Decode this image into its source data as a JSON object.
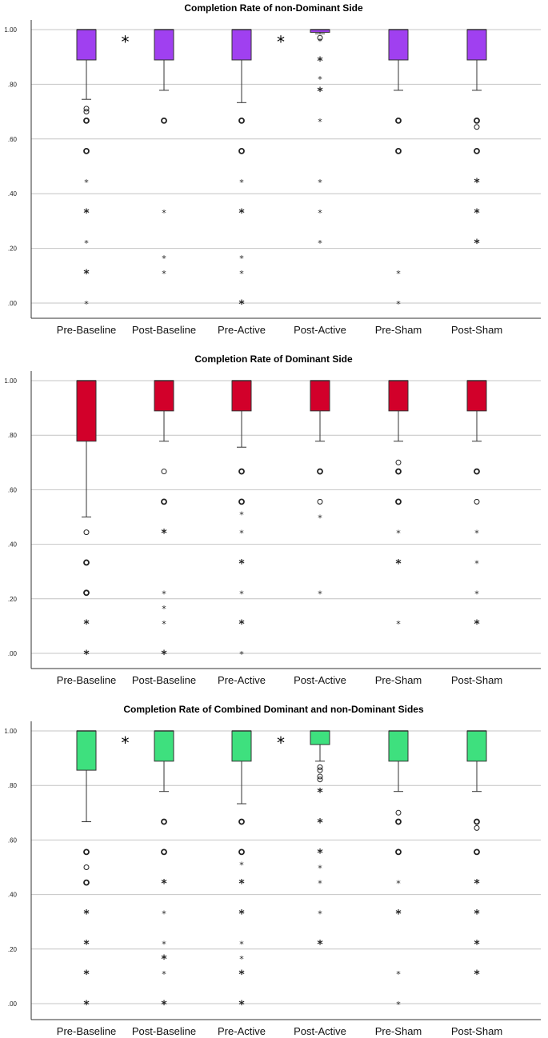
{
  "chart_data": [
    {
      "type": "box",
      "title": "Completion Rate of non-Dominant Side",
      "xlabel": "",
      "ylabel": "",
      "ylim": [
        0,
        1
      ],
      "yticks": [
        ".00",
        ".20",
        ".40",
        ".60",
        ".80",
        "1.00"
      ],
      "color": "#a040f0",
      "categories": [
        "Pre-Baseline",
        "Post-Baseline",
        "Pre-Active",
        "Post-Active",
        "Pre-Sham",
        "Post-Sham"
      ],
      "boxes": [
        {
          "q1": 0.889,
          "median": 1.0,
          "q3": 1.0,
          "whisker_low": 0.745,
          "whisker_high": 1.0
        },
        {
          "q1": 0.889,
          "median": 1.0,
          "q3": 1.0,
          "whisker_low": 0.778,
          "whisker_high": 1.0
        },
        {
          "q1": 0.889,
          "median": 1.0,
          "q3": 1.0,
          "whisker_low": 0.733,
          "whisker_high": 1.0
        },
        {
          "q1": 0.99,
          "median": 1.0,
          "q3": 1.0,
          "whisker_low": 0.985,
          "whisker_high": 1.0
        },
        {
          "q1": 0.889,
          "median": 1.0,
          "q3": 1.0,
          "whisker_low": 0.778,
          "whisker_high": 1.0
        },
        {
          "q1": 0.889,
          "median": 1.0,
          "q3": 1.0,
          "whisker_low": 0.778,
          "whisker_high": 1.0
        }
      ],
      "outliers": [
        [
          {
            "v": 0.711,
            "k": "o"
          },
          {
            "v": 0.7,
            "k": "o"
          },
          {
            "v": 0.667,
            "k": "O"
          },
          {
            "v": 0.556,
            "k": "O"
          },
          {
            "v": 0.444,
            "k": "*"
          },
          {
            "v": 0.333,
            "k": "*b"
          },
          {
            "v": 0.222,
            "k": "*"
          },
          {
            "v": 0.111,
            "k": "*b"
          },
          {
            "v": 0.0,
            "k": "*"
          }
        ],
        [
          {
            "v": 0.667,
            "k": "O"
          },
          {
            "v": 0.333,
            "k": "*"
          },
          {
            "v": 0.167,
            "k": "*"
          },
          {
            "v": 0.111,
            "k": "*"
          }
        ],
        [
          {
            "v": 0.667,
            "k": "O"
          },
          {
            "v": 0.556,
            "k": "O"
          },
          {
            "v": 0.444,
            "k": "*"
          },
          {
            "v": 0.333,
            "k": "*b"
          },
          {
            "v": 0.167,
            "k": "*"
          },
          {
            "v": 0.111,
            "k": "*"
          },
          {
            "v": 0.0,
            "k": "*b"
          }
        ],
        [
          {
            "v": 0.97,
            "k": "o"
          },
          {
            "v": 0.96,
            "k": "*"
          },
          {
            "v": 0.889,
            "k": "*b"
          },
          {
            "v": 0.822,
            "k": "*"
          },
          {
            "v": 0.778,
            "k": "*b"
          },
          {
            "v": 0.667,
            "k": "*"
          },
          {
            "v": 0.444,
            "k": "*"
          },
          {
            "v": 0.333,
            "k": "*"
          },
          {
            "v": 0.222,
            "k": "*"
          }
        ],
        [
          {
            "v": 0.667,
            "k": "O"
          },
          {
            "v": 0.556,
            "k": "O"
          },
          {
            "v": 0.111,
            "k": "*"
          },
          {
            "v": 0.0,
            "k": "*"
          }
        ],
        [
          {
            "v": 0.667,
            "k": "O"
          },
          {
            "v": 0.644,
            "k": "o"
          },
          {
            "v": 0.556,
            "k": "O"
          },
          {
            "v": 0.444,
            "k": "*b"
          },
          {
            "v": 0.333,
            "k": "*b"
          },
          {
            "v": 0.222,
            "k": "*b"
          }
        ]
      ],
      "significance_marks": [
        {
          "between": [
            0,
            1
          ],
          "value": 0.97,
          "label": "*"
        },
        {
          "between": [
            2,
            3
          ],
          "value": 0.97,
          "label": "*"
        }
      ]
    },
    {
      "type": "box",
      "title": "Completion Rate of Dominant Side",
      "xlabel": "",
      "ylabel": "",
      "ylim": [
        0,
        1
      ],
      "yticks": [
        ".00",
        ".20",
        ".40",
        ".60",
        ".80",
        "1.00"
      ],
      "color": "#d2002a",
      "categories": [
        "Pre-Baseline",
        "Post-Baseline",
        "Pre-Active",
        "Post-Active",
        "Pre-Sham",
        "Post-Sham"
      ],
      "boxes": [
        {
          "q1": 0.778,
          "median": 1.0,
          "q3": 1.0,
          "whisker_low": 0.5,
          "whisker_high": 1.0
        },
        {
          "q1": 0.889,
          "median": 1.0,
          "q3": 1.0,
          "whisker_low": 0.778,
          "whisker_high": 1.0
        },
        {
          "q1": 0.889,
          "median": 1.0,
          "q3": 1.0,
          "whisker_low": 0.756,
          "whisker_high": 1.0
        },
        {
          "q1": 0.889,
          "median": 1.0,
          "q3": 1.0,
          "whisker_low": 0.778,
          "whisker_high": 1.0
        },
        {
          "q1": 0.889,
          "median": 1.0,
          "q3": 1.0,
          "whisker_low": 0.778,
          "whisker_high": 1.0
        },
        {
          "q1": 0.889,
          "median": 1.0,
          "q3": 1.0,
          "whisker_low": 0.778,
          "whisker_high": 1.0
        }
      ],
      "outliers": [
        [
          {
            "v": 0.444,
            "k": "o"
          },
          {
            "v": 0.333,
            "k": "O"
          },
          {
            "v": 0.222,
            "k": "O"
          },
          {
            "v": 0.111,
            "k": "*b"
          },
          {
            "v": 0.0,
            "k": "*b"
          }
        ],
        [
          {
            "v": 0.667,
            "k": "o"
          },
          {
            "v": 0.556,
            "k": "O"
          },
          {
            "v": 0.444,
            "k": "*b"
          },
          {
            "v": 0.222,
            "k": "*"
          },
          {
            "v": 0.167,
            "k": "*"
          },
          {
            "v": 0.111,
            "k": "*"
          },
          {
            "v": 0.0,
            "k": "*b"
          }
        ],
        [
          {
            "v": 0.667,
            "k": "O"
          },
          {
            "v": 0.556,
            "k": "O"
          },
          {
            "v": 0.511,
            "k": "*"
          },
          {
            "v": 0.444,
            "k": "*"
          },
          {
            "v": 0.333,
            "k": "*b"
          },
          {
            "v": 0.222,
            "k": "*"
          },
          {
            "v": 0.111,
            "k": "*b"
          },
          {
            "v": 0.0,
            "k": "*"
          }
        ],
        [
          {
            "v": 0.667,
            "k": "O"
          },
          {
            "v": 0.556,
            "k": "o"
          },
          {
            "v": 0.5,
            "k": "*"
          },
          {
            "v": 0.222,
            "k": "*"
          }
        ],
        [
          {
            "v": 0.7,
            "k": "o"
          },
          {
            "v": 0.667,
            "k": "O"
          },
          {
            "v": 0.556,
            "k": "O"
          },
          {
            "v": 0.444,
            "k": "*"
          },
          {
            "v": 0.333,
            "k": "*b"
          },
          {
            "v": 0.111,
            "k": "*"
          }
        ],
        [
          {
            "v": 0.667,
            "k": "O"
          },
          {
            "v": 0.556,
            "k": "o"
          },
          {
            "v": 0.444,
            "k": "*"
          },
          {
            "v": 0.333,
            "k": "*"
          },
          {
            "v": 0.222,
            "k": "*"
          },
          {
            "v": 0.111,
            "k": "*b"
          }
        ]
      ],
      "significance_marks": []
    },
    {
      "type": "box",
      "title": "Completion Rate of Combined Dominant and non-Dominant Sides",
      "xlabel": "",
      "ylabel": "",
      "ylim": [
        0,
        1
      ],
      "yticks": [
        ".00",
        ".20",
        ".40",
        ".60",
        ".80",
        "1.00"
      ],
      "color": "#3ee07e",
      "categories": [
        "Pre-Baseline",
        "Post-Baseline",
        "Pre-Active",
        "Post-Active",
        "Pre-Sham",
        "Post-Sham"
      ],
      "boxes": [
        {
          "q1": 0.856,
          "median": 1.0,
          "q3": 1.0,
          "whisker_low": 0.667,
          "whisker_high": 1.0
        },
        {
          "q1": 0.889,
          "median": 1.0,
          "q3": 1.0,
          "whisker_low": 0.778,
          "whisker_high": 1.0
        },
        {
          "q1": 0.889,
          "median": 1.0,
          "q3": 1.0,
          "whisker_low": 0.733,
          "whisker_high": 1.0
        },
        {
          "q1": 0.95,
          "median": 1.0,
          "q3": 1.0,
          "whisker_low": 0.889,
          "whisker_high": 1.0
        },
        {
          "q1": 0.889,
          "median": 1.0,
          "q3": 1.0,
          "whisker_low": 0.778,
          "whisker_high": 1.0
        },
        {
          "q1": 0.889,
          "median": 1.0,
          "q3": 1.0,
          "whisker_low": 0.778,
          "whisker_high": 1.0
        }
      ],
      "outliers": [
        [
          {
            "v": 0.556,
            "k": "O"
          },
          {
            "v": 0.5,
            "k": "o"
          },
          {
            "v": 0.444,
            "k": "O"
          },
          {
            "v": 0.333,
            "k": "*b"
          },
          {
            "v": 0.222,
            "k": "*b"
          },
          {
            "v": 0.111,
            "k": "*b"
          },
          {
            "v": 0.0,
            "k": "*b"
          }
        ],
        [
          {
            "v": 0.667,
            "k": "O"
          },
          {
            "v": 0.556,
            "k": "O"
          },
          {
            "v": 0.444,
            "k": "*b"
          },
          {
            "v": 0.333,
            "k": "*"
          },
          {
            "v": 0.222,
            "k": "*"
          },
          {
            "v": 0.167,
            "k": "*b"
          },
          {
            "v": 0.111,
            "k": "*"
          },
          {
            "v": 0.0,
            "k": "*b"
          }
        ],
        [
          {
            "v": 0.667,
            "k": "O"
          },
          {
            "v": 0.556,
            "k": "O"
          },
          {
            "v": 0.511,
            "k": "*"
          },
          {
            "v": 0.444,
            "k": "*b"
          },
          {
            "v": 0.333,
            "k": "*b"
          },
          {
            "v": 0.222,
            "k": "*"
          },
          {
            "v": 0.167,
            "k": "*"
          },
          {
            "v": 0.111,
            "k": "*b"
          },
          {
            "v": 0.0,
            "k": "*b"
          }
        ],
        [
          {
            "v": 0.867,
            "k": "o"
          },
          {
            "v": 0.856,
            "k": "o"
          },
          {
            "v": 0.833,
            "k": "o"
          },
          {
            "v": 0.822,
            "k": "o"
          },
          {
            "v": 0.778,
            "k": "*b"
          },
          {
            "v": 0.667,
            "k": "*b"
          },
          {
            "v": 0.556,
            "k": "*b"
          },
          {
            "v": 0.5,
            "k": "*"
          },
          {
            "v": 0.444,
            "k": "*"
          },
          {
            "v": 0.333,
            "k": "*"
          },
          {
            "v": 0.222,
            "k": "*b"
          }
        ],
        [
          {
            "v": 0.7,
            "k": "o"
          },
          {
            "v": 0.667,
            "k": "O"
          },
          {
            "v": 0.556,
            "k": "O"
          },
          {
            "v": 0.444,
            "k": "*"
          },
          {
            "v": 0.333,
            "k": "*b"
          },
          {
            "v": 0.111,
            "k": "*"
          },
          {
            "v": 0.0,
            "k": "*"
          }
        ],
        [
          {
            "v": 0.667,
            "k": "O"
          },
          {
            "v": 0.644,
            "k": "o"
          },
          {
            "v": 0.556,
            "k": "O"
          },
          {
            "v": 0.444,
            "k": "*b"
          },
          {
            "v": 0.333,
            "k": "*b"
          },
          {
            "v": 0.222,
            "k": "*b"
          },
          {
            "v": 0.111,
            "k": "*b"
          }
        ]
      ],
      "significance_marks": [
        {
          "between": [
            0,
            1
          ],
          "value": 0.97,
          "label": "*"
        },
        {
          "between": [
            2,
            3
          ],
          "value": 0.97,
          "label": "*"
        }
      ]
    }
  ]
}
